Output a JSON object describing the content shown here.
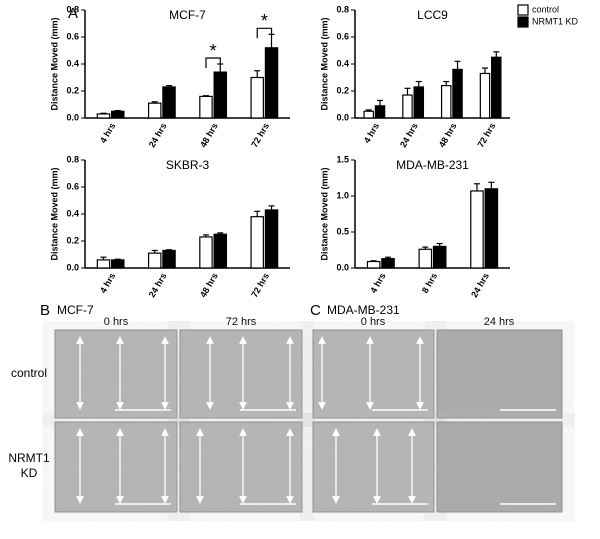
{
  "chart_data": [
    {
      "type": "bar",
      "title": "MCF-7",
      "ylabel": "Distance Moved (mm)",
      "categories": [
        "4 hrs",
        "24 hrs",
        "48 hrs",
        "72 hrs"
      ],
      "series": [
        {
          "name": "control",
          "color": "#ffffff",
          "values": [
            0.03,
            0.11,
            0.16,
            0.3
          ],
          "errors": [
            0.005,
            0.01,
            0.005,
            0.05
          ]
        },
        {
          "name": "NRMT1 KD",
          "color": "#000000",
          "values": [
            0.05,
            0.23,
            0.34,
            0.52
          ],
          "errors": [
            0.005,
            0.01,
            0.06,
            0.1
          ]
        }
      ],
      "ylim": [
        0,
        0.8
      ],
      "yticks": [
        {
          "value": 0,
          "label": "0.0"
        },
        0.2,
        0.4,
        0.6,
        0.8
      ],
      "annotations": [
        "*",
        "*"
      ]
    },
    {
      "type": "bar",
      "title": "LCC9",
      "ylabel": "Distance Moved (mm)",
      "categories": [
        "4 hrs",
        "24 hrs",
        "48 hrs",
        "72 hrs"
      ],
      "series": [
        {
          "name": "control",
          "color": "#ffffff",
          "values": [
            0.05,
            0.17,
            0.24,
            0.33
          ],
          "errors": [
            0.01,
            0.05,
            0.03,
            0.04
          ]
        },
        {
          "name": "NRMT1 KD",
          "color": "#000000",
          "values": [
            0.09,
            0.23,
            0.36,
            0.45
          ],
          "errors": [
            0.04,
            0.04,
            0.06,
            0.04
          ]
        }
      ],
      "ylim": [
        0,
        0.8
      ],
      "yticks": [
        {
          "value": 0,
          "label": "0.0"
        },
        0.2,
        0.4,
        0.6,
        0.8
      ],
      "legend": "upper right"
    },
    {
      "type": "bar",
      "title": "SKBR-3",
      "ylabel": "Distance Moved (mm)",
      "categories": [
        "4 hrs",
        "24 hrs",
        "48 hrs",
        "72 hrs"
      ],
      "series": [
        {
          "name": "control",
          "color": "#ffffff",
          "values": [
            0.06,
            0.11,
            0.23,
            0.38
          ],
          "errors": [
            0.02,
            0.02,
            0.015,
            0.04
          ]
        },
        {
          "name": "NRMT1 KD",
          "color": "#000000",
          "values": [
            0.06,
            0.13,
            0.25,
            0.43
          ],
          "errors": [
            0.005,
            0.005,
            0.01,
            0.03
          ]
        }
      ],
      "ylim": [
        0,
        0.8
      ],
      "yticks": [
        {
          "value": 0,
          "label": "0.0"
        },
        0.2,
        0.4,
        0.6,
        0.8
      ]
    },
    {
      "type": "bar",
      "title": "MDA-MB-231",
      "ylabel": "Distance Moved (mm)",
      "categories": [
        "4 hrs",
        "8 hrs",
        "24 hrs"
      ],
      "series": [
        {
          "name": "control",
          "color": "#ffffff",
          "values": [
            0.09,
            0.26,
            1.07
          ],
          "errors": [
            0.01,
            0.03,
            0.1
          ]
        },
        {
          "name": "NRMT1 KD",
          "color": "#000000",
          "values": [
            0.13,
            0.3,
            1.1
          ],
          "errors": [
            0.02,
            0.04,
            0.09
          ]
        }
      ],
      "ylim": [
        0,
        1.5
      ],
      "yticks": [
        {
          "value": 0,
          "label": "0.0"
        },
        0.5,
        {
          "value": 1,
          "label": "1.0"
        },
        1.5
      ]
    }
  ],
  "figure": {
    "panel_a": "A",
    "panel_b": {
      "label": "B",
      "title": "MCF-7",
      "columns": [
        "0 hrs",
        "72 hrs"
      ]
    },
    "panel_c": {
      "label": "C",
      "title": "MDA-MB-231",
      "columns": [
        "0 hrs",
        "24 hrs"
      ]
    },
    "rows": [
      "control",
      "NRMT1 KD"
    ]
  }
}
